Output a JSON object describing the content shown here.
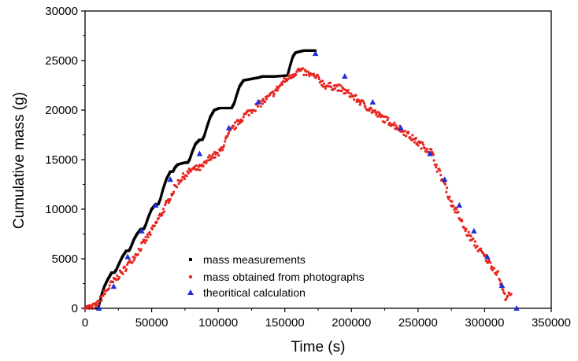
{
  "chart_data": {
    "type": "scatter",
    "xlabel": "Time (s)",
    "ylabel": "Cumulative mass (g)",
    "xlim": [
      0,
      350000
    ],
    "ylim": [
      0,
      30000
    ],
    "x_ticks": [
      0,
      50000,
      100000,
      150000,
      200000,
      250000,
      300000,
      350000
    ],
    "y_ticks": [
      0,
      5000,
      10000,
      15000,
      20000,
      25000,
      30000
    ],
    "x_tick_labels": [
      "0",
      "50000",
      "100000",
      "150000",
      "200000",
      "250000",
      "300000",
      "350000"
    ],
    "y_tick_labels": [
      "0",
      "5000",
      "10000",
      "15000",
      "20000",
      "25000",
      "30000"
    ],
    "grid": false,
    "legend_position": "bottom-center",
    "series": [
      {
        "name": "mass measurements",
        "color": "#000000",
        "marker": "square",
        "style": "dense-steps",
        "x": [
          0,
          10000,
          11000,
          12500,
          14500,
          17000,
          20000,
          22000,
          23500,
          25500,
          28000,
          31000,
          33000,
          34500,
          36500,
          39000,
          42000,
          44000,
          45500,
          47500,
          50000,
          53000,
          55000,
          56500,
          58500,
          61000,
          64000,
          66000,
          67500,
          69500,
          72000,
          75000,
          77000,
          78500,
          80500,
          83000,
          86000,
          88000,
          89500,
          91500,
          94000,
          97000,
          99000,
          101000,
          103000,
          105000,
          108000,
          110000,
          112000,
          114000,
          116000,
          119000,
          131000,
          133000,
          135000,
          137000,
          140000,
          143000,
          152000,
          154000,
          156000,
          158000,
          161000,
          164000,
          173000
        ],
        "y": [
          0,
          0,
          600,
          1400,
          2200,
          2900,
          3600,
          3600,
          3900,
          4500,
          5200,
          5800,
          5800,
          6200,
          6900,
          7500,
          8000,
          8000,
          8400,
          9200,
          10000,
          10500,
          10500,
          11000,
          12000,
          13000,
          13800,
          13800,
          14200,
          14500,
          14600,
          14700,
          14700,
          15000,
          15800,
          16600,
          17000,
          17000,
          17400,
          18300,
          19300,
          20000,
          20100,
          20200,
          20200,
          20200,
          20200,
          20200,
          20700,
          21600,
          22400,
          23000,
          23300,
          23400,
          23400,
          23400,
          23400,
          23400,
          23500,
          24500,
          25400,
          25800,
          25900,
          26000,
          26000
        ]
      },
      {
        "name": "mass obtained from photographs",
        "color": "#e8251f",
        "marker": "circle",
        "style": "noisy-trend",
        "x": [
          0,
          8000,
          12000,
          20000,
          30000,
          40000,
          50000,
          60000,
          70000,
          80000,
          88000,
          95000,
          100000,
          110000,
          120000,
          130000,
          140000,
          150000,
          160000,
          165000,
          170000,
          175000,
          180000,
          190000,
          200000,
          210000,
          220000,
          230000,
          240000,
          250000,
          260000,
          265000,
          270000,
          275000,
          280000,
          285000,
          290000,
          300000,
          310000,
          315000,
          320000
        ],
        "y": [
          0,
          200,
          1000,
          2500,
          4000,
          5800,
          7800,
          10200,
          12800,
          14000,
          14200,
          15400,
          15500,
          18000,
          19500,
          20500,
          21500,
          23000,
          24000,
          23800,
          23500,
          23200,
          22500,
          22300,
          21500,
          20500,
          19500,
          18700,
          17800,
          16700,
          15800,
          14000,
          12500,
          10600,
          9500,
          8000,
          7000,
          5200,
          3500,
          1200,
          1300
        ]
      },
      {
        "name": "theoritical calculation",
        "color": "#1f2fd8",
        "marker": "triangle",
        "x": [
          10500,
          21500,
          32000,
          42500,
          53000,
          64000,
          86000,
          108000,
          130000,
          173000,
          195000,
          216000,
          237000,
          259000,
          270000,
          281000,
          292000,
          302000,
          313000,
          324000
        ],
        "y": [
          0,
          2200,
          5200,
          7800,
          10400,
          13000,
          15600,
          18200,
          20800,
          25700,
          23400,
          20800,
          18200,
          15600,
          13000,
          10400,
          7800,
          5200,
          2300,
          0
        ]
      }
    ]
  }
}
